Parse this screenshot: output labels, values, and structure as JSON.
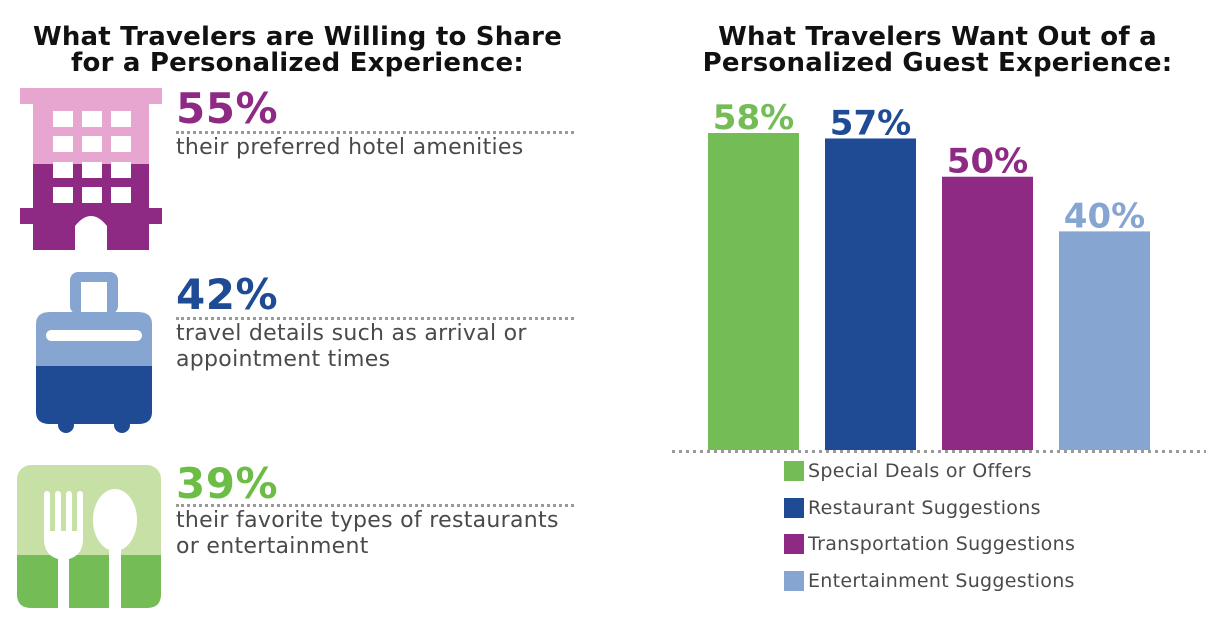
{
  "left_panel": {
    "title_line1": "What Travelers are Willing to Share",
    "title_line2": "for a Personalized Experience:",
    "items": [
      {
        "icon": "hotel-building-icon",
        "percent": "55%",
        "text_line1": "their preferred hotel amenities",
        "text_line2": "",
        "color": "#8e2a84"
      },
      {
        "icon": "suitcase-icon",
        "percent": "42%",
        "text_line1": "travel details such as arrival or",
        "text_line2": "appointment times",
        "color": "#1f4a94"
      },
      {
        "icon": "fork-spoon-icon",
        "percent": "39%",
        "text_line1": "their favorite types of restaurants",
        "text_line2": "or entertainment",
        "color": "#6cbd45"
      }
    ]
  },
  "right_panel": {
    "title_line1": "What Travelers Want Out of a",
    "title_line2": "Personalized Guest Experience:"
  },
  "chart_data": {
    "type": "bar",
    "title": "What Travelers Want Out of a Personalized Guest Experience:",
    "categories": [
      "Special Deals or Offers",
      "Restaurant Suggestions",
      "Transportation Suggestions",
      "Entertainment Suggestions"
    ],
    "values": [
      58,
      57,
      50,
      40
    ],
    "labels": [
      "58%",
      "57%",
      "50%",
      "40%"
    ],
    "colors": [
      "#74bc55",
      "#1f4a94",
      "#8e2a84",
      "#86a6d1"
    ],
    "ylim": [
      0,
      58
    ],
    "grid": false,
    "legend": "bottom"
  }
}
